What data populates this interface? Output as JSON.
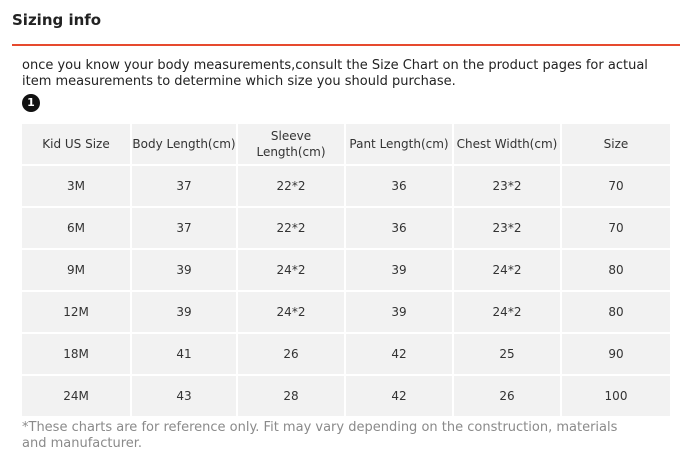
{
  "header": {
    "title": "Sizing info",
    "accent_color": "#e64a2e"
  },
  "intro_text": "once you know your body measurements,consult the Size Chart on the product pages for actual item measurements to determine which size you should purchase.",
  "step_badge": "1",
  "table": {
    "headers": [
      "Kid US Size",
      "Body Length(cm)",
      "Sleeve Length(cm)",
      "Pant Length(cm)",
      "Chest Width(cm)",
      "Size"
    ],
    "rows": [
      [
        "3M",
        "37",
        "22*2",
        "36",
        "23*2",
        "70"
      ],
      [
        "6M",
        "37",
        "22*2",
        "36",
        "23*2",
        "70"
      ],
      [
        "9M",
        "39",
        "24*2",
        "39",
        "24*2",
        "80"
      ],
      [
        "12M",
        "39",
        "24*2",
        "39",
        "24*2",
        "80"
      ],
      [
        "18M",
        "41",
        "26",
        "42",
        "25",
        "90"
      ],
      [
        "24M",
        "43",
        "28",
        "42",
        "26",
        "100"
      ]
    ]
  },
  "footnote": "*These charts are for reference only. Fit may vary depending on the construction, materials and manufacturer."
}
